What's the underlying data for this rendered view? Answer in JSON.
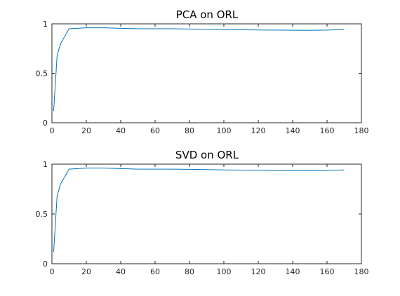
{
  "chart_data": [
    {
      "type": "line",
      "title": "PCA on ORL",
      "xlabel": "",
      "ylabel": "",
      "xlim": [
        0,
        180
      ],
      "ylim": [
        0,
        1
      ],
      "xticks": [
        0,
        20,
        40,
        60,
        80,
        100,
        120,
        140,
        160,
        180
      ],
      "yticks": [
        0,
        0.5,
        1
      ],
      "xtick_labels": [
        "0",
        "20",
        "40",
        "60",
        "80",
        "100",
        "120",
        "140",
        "160",
        "180"
      ],
      "ytick_labels": [
        "0",
        "0.5",
        "1"
      ],
      "grid": false,
      "series": [
        {
          "color": "#0072bd",
          "x": [
            1,
            3,
            5,
            10,
            20,
            30,
            40,
            50,
            60,
            70,
            80,
            90,
            100,
            110,
            120,
            130,
            140,
            150,
            160,
            170
          ],
          "y": [
            0.12,
            0.68,
            0.8,
            0.95,
            0.96,
            0.96,
            0.955,
            0.95,
            0.95,
            0.95,
            0.948,
            0.945,
            0.942,
            0.94,
            0.938,
            0.937,
            0.935,
            0.934,
            0.937,
            0.942
          ]
        }
      ]
    },
    {
      "type": "line",
      "title": "SVD on ORL",
      "xlabel": "",
      "ylabel": "",
      "xlim": [
        0,
        180
      ],
      "ylim": [
        0,
        1
      ],
      "xticks": [
        0,
        20,
        40,
        60,
        80,
        100,
        120,
        140,
        160,
        180
      ],
      "yticks": [
        0,
        0.5,
        1
      ],
      "xtick_labels": [
        "0",
        "20",
        "40",
        "60",
        "80",
        "100",
        "120",
        "140",
        "160",
        "180"
      ],
      "ytick_labels": [
        "0",
        "0.5",
        "1"
      ],
      "grid": false,
      "series": [
        {
          "color": "#0072bd",
          "x": [
            1,
            3,
            5,
            10,
            20,
            30,
            40,
            50,
            60,
            70,
            80,
            90,
            100,
            110,
            120,
            130,
            140,
            150,
            160,
            170
          ],
          "y": [
            0.12,
            0.68,
            0.8,
            0.95,
            0.96,
            0.96,
            0.955,
            0.95,
            0.95,
            0.95,
            0.948,
            0.945,
            0.942,
            0.94,
            0.938,
            0.937,
            0.935,
            0.934,
            0.937,
            0.942
          ]
        }
      ]
    }
  ]
}
